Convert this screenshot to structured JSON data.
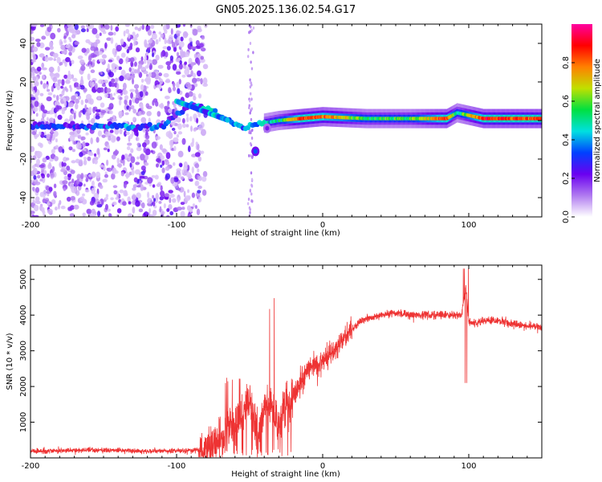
{
  "title": "GN05.2025.136.02.54.G17",
  "chart_data": [
    {
      "type": "heatmap",
      "title": "GN05.2025.136.02.54.G17",
      "xlabel": "Height of straight line (km)",
      "ylabel": "Frequency (Hz)",
      "xlim": [
        -200,
        150
      ],
      "ylim": [
        -50,
        50
      ],
      "xticks": [
        -200,
        -100,
        0,
        100
      ],
      "yticks": [
        -40,
        -20,
        0,
        20,
        40
      ],
      "colorbar": {
        "label": "Normalized spectral amplitude",
        "range": [
          0,
          1
        ],
        "ticks": [
          0.0,
          0.2,
          0.4,
          0.6,
          0.8
        ],
        "colors": [
          "#ffffff",
          "#b07af0",
          "#6a00f0",
          "#0040ff",
          "#00e0e0",
          "#00e040",
          "#c0e000",
          "#ff8000",
          "#ff0000",
          "#ff00a0"
        ]
      },
      "ridge": [
        {
          "x": -200,
          "f": -3,
          "amp": 0.3
        },
        {
          "x": -160,
          "f": -3,
          "amp": 0.3
        },
        {
          "x": -130,
          "f": -3,
          "amp": 0.35
        },
        {
          "x": -110,
          "f": -3,
          "amp": 0.3
        },
        {
          "x": -90,
          "f": 9,
          "amp": 0.3
        },
        {
          "x": -75,
          "f": 5,
          "amp": 0.45
        },
        {
          "x": -65,
          "f": 0,
          "amp": 0.4
        },
        {
          "x": -55,
          "f": -4,
          "amp": 0.35
        },
        {
          "x": -45,
          "f": -2,
          "amp": 0.35
        },
        {
          "x": -30,
          "f": 0,
          "amp": 0.5
        },
        {
          "x": -15,
          "f": 1,
          "amp": 0.85
        },
        {
          "x": 0,
          "f": 2,
          "amp": 0.8
        },
        {
          "x": 30,
          "f": 1,
          "amp": 0.55
        },
        {
          "x": 60,
          "f": 1,
          "amp": 0.55
        },
        {
          "x": 85,
          "f": 1,
          "amp": 0.85
        },
        {
          "x": 92,
          "f": 4,
          "amp": 0.5
        },
        {
          "x": 110,
          "f": 1,
          "amp": 0.85
        },
        {
          "x": 150,
          "f": 1,
          "amp": 0.85
        }
      ],
      "secondary_blobs": [
        {
          "x": -46,
          "f": -16,
          "amp": 0.35
        },
        {
          "x": -38,
          "f": -4,
          "amp": 0.2
        }
      ]
    },
    {
      "type": "line",
      "xlabel": "Height of straight line (km)",
      "ylabel": "SNR (10 * v/v)",
      "xlim": [
        -200,
        150
      ],
      "ylim": [
        0,
        5400
      ],
      "xticks": [
        -200,
        -100,
        0,
        100
      ],
      "yticks": [
        1000,
        2000,
        3000,
        4000,
        5000
      ],
      "color": "#ee3333",
      "series": [
        {
          "x": [
            -200,
            -180,
            -160,
            -140,
            -120,
            -100,
            -90,
            -80,
            -75,
            -70,
            -65,
            -60,
            -55,
            -50,
            -45,
            -40,
            -35,
            -30,
            -25,
            -20,
            -15,
            -10,
            -5,
            0,
            5,
            10,
            15,
            20,
            25,
            30,
            40,
            50,
            60,
            70,
            80,
            90,
            95,
            98,
            100,
            105,
            110,
            120,
            130,
            140,
            150
          ],
          "y": [
            180,
            200,
            220,
            210,
            190,
            200,
            210,
            260,
            400,
            600,
            900,
            1000,
            1100,
            1500,
            700,
            1500,
            1500,
            900,
            1500,
            1700,
            2100,
            2500,
            2600,
            2700,
            2900,
            3100,
            3400,
            3600,
            3800,
            3900,
            4000,
            4050,
            4000,
            4000,
            4000,
            4000,
            4000,
            4800,
            3800,
            3800,
            3850,
            3850,
            3750,
            3700,
            3650
          ]
        }
      ]
    }
  ]
}
